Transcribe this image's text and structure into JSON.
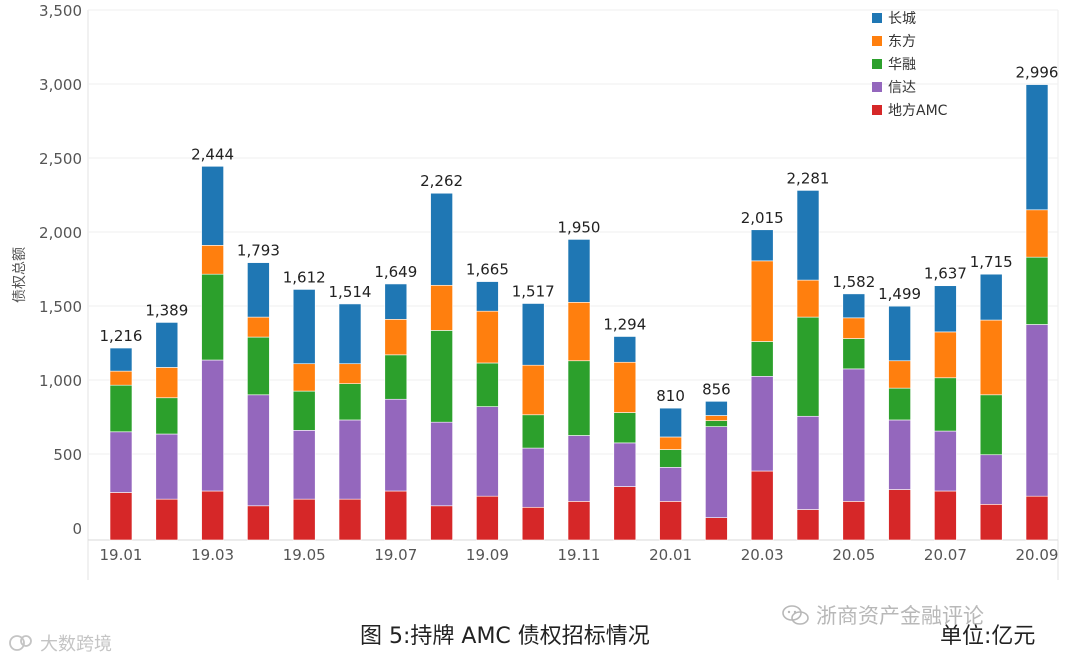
{
  "chart_data": {
    "type": "bar",
    "stacked": true,
    "ylabel": "债权总额",
    "ylim": [
      0,
      3500
    ],
    "yticks": [
      0,
      500,
      1000,
      1500,
      2000,
      2500,
      3000,
      3500
    ],
    "ytick_labels": [
      "0",
      "500",
      "1,000",
      "1,500",
      "2,000",
      "2,500",
      "3,000",
      "3,500"
    ],
    "categories": [
      "19.01",
      "19.02",
      "19.03",
      "19.04",
      "19.05",
      "19.06",
      "19.07",
      "19.08",
      "19.09",
      "19.10",
      "19.11",
      "19.12",
      "20.01",
      "20.02",
      "20.03",
      "20.04",
      "20.05",
      "20.06",
      "20.07",
      "20.08",
      "20.09"
    ],
    "xtick_labels": [
      "19.01",
      "",
      "19.03",
      "",
      "19.05",
      "",
      "19.07",
      "",
      "19.09",
      "",
      "19.11",
      "",
      "20.01",
      "",
      "20.03",
      "",
      "20.05",
      "",
      "20.07",
      "",
      "20.09"
    ],
    "legend_position": "top-right",
    "series": [
      {
        "name": "地方AMC",
        "color": "#d62728",
        "values": [
          240,
          195,
          250,
          150,
          195,
          195,
          250,
          150,
          215,
          140,
          180,
          280,
          180,
          70,
          385,
          125,
          180,
          260,
          250,
          160,
          215
        ]
      },
      {
        "name": "信达",
        "color": "#9467bd",
        "values": [
          410,
          440,
          885,
          750,
          465,
          535,
          620,
          565,
          605,
          400,
          445,
          295,
          230,
          615,
          640,
          630,
          895,
          470,
          405,
          335,
          1160
        ]
      },
      {
        "name": "华融",
        "color": "#2ca02c",
        "values": [
          315,
          245,
          580,
          390,
          265,
          245,
          300,
          620,
          295,
          225,
          505,
          205,
          120,
          40,
          235,
          670,
          205,
          215,
          360,
          405,
          455
        ]
      },
      {
        "name": "东方",
        "color": "#ff7f0e",
        "values": [
          95,
          205,
          195,
          135,
          185,
          135,
          240,
          305,
          350,
          335,
          395,
          340,
          85,
          35,
          545,
          250,
          140,
          185,
          310,
          505,
          320
        ]
      },
      {
        "name": "长城",
        "color": "#1f77b4",
        "values": [
          156,
          304,
          534,
          368,
          502,
          404,
          239,
          622,
          200,
          417,
          425,
          174,
          195,
          96,
          210,
          606,
          162,
          369,
          312,
          310,
          846
        ]
      }
    ],
    "totals": [
      1216,
      1389,
      2444,
      1793,
      1612,
      1514,
      1649,
      2262,
      1665,
      1517,
      1950,
      1294,
      810,
      856,
      2015,
      2281,
      1582,
      1499,
      1637,
      1715,
      2996
    ],
    "total_labels": [
      "1,216",
      "1,389",
      "2,444",
      "1,793",
      "1,612",
      "1,514",
      "1,649",
      "2,262",
      "1,665",
      "1,517",
      "1,950",
      "1,294",
      "810",
      "856",
      "2,015",
      "2,281",
      "1,582",
      "1,499",
      "1,637",
      "1,715",
      "2,996"
    ],
    "legend_order": [
      "长城",
      "东方",
      "华融",
      "信达",
      "地方AMC"
    ]
  },
  "caption": "图 5:持牌 AMC 债权招标情况",
  "unit": "单位:亿元",
  "source": "浙商资产金融评论",
  "watermark": "大数跨境"
}
